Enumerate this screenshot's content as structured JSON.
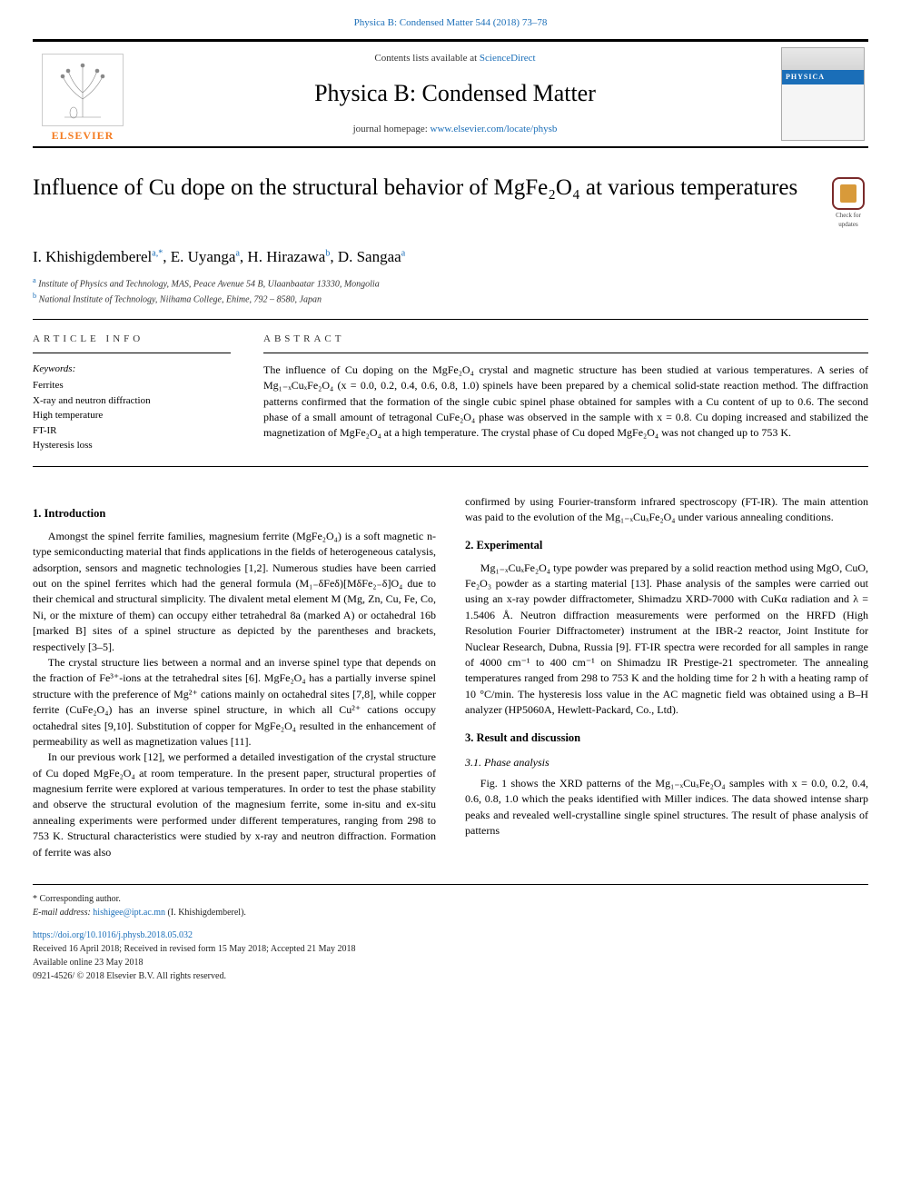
{
  "top_link": "Physica B: Condensed Matter 544 (2018) 73–78",
  "header": {
    "contents_prefix": "Contents lists available at ",
    "contents_link": "ScienceDirect",
    "journal_name": "Physica B: Condensed Matter",
    "homepage_prefix": "journal homepage: ",
    "homepage_link": "www.elsevier.com/locate/physb",
    "elsevier": "ELSEVIER",
    "cover_band": "PHYSICA"
  },
  "title": "Influence of Cu dope on the structural behavior of MgFe₂O₄ at various temperatures",
  "check_for_updates": "Check for updates",
  "authors_html": "I. Khishigdemberel<sup>a,*</sup>, E. Uyanga<sup>a</sup>, H. Hirazawa<sup>b</sup>, D. Sangaa<sup>a</sup>",
  "affiliations": {
    "a": "Institute of Physics and Technology, MAS, Peace Avenue 54 B, Ulaanbaatar 13330, Mongolia",
    "b": "National Institute of Technology, Niihama College, Ehime, 792 – 8580, Japan"
  },
  "info": {
    "heading": "ARTICLE INFO",
    "keywords_label": "Keywords:",
    "keywords": [
      "Ferrites",
      "X-ray and neutron diffraction",
      "High temperature",
      "FT-IR",
      "Hysteresis loss"
    ]
  },
  "abstract": {
    "heading": "ABSTRACT",
    "text": "The influence of Cu doping on the MgFe₂O₄ crystal and magnetic structure has been studied at various temperatures. A series of Mg₁₋ₓCuₓFe₂O₄ (x = 0.0, 0.2, 0.4, 0.6, 0.8, 1.0) spinels have been prepared by a chemical solid-state reaction method. The diffraction patterns confirmed that the formation of the single cubic spinel phase obtained for samples with a Cu content of up to 0.6. The second phase of a small amount of tetragonal CuFe₂O₄ phase was observed in the sample with x = 0.8. Cu doping increased and stabilized the magnetization of MgFe₂O₄ at a high temperature. The crystal phase of Cu doped MgFe₂O₄ was not changed up to 753 K."
  },
  "sections": {
    "intro": {
      "heading": "1. Introduction",
      "p1": "Amongst the spinel ferrite families, magnesium ferrite (MgFe₂O₄) is a soft magnetic n-type semiconducting material that finds applications in the fields of heterogeneous catalysis, adsorption, sensors and magnetic technologies [1,2]. Numerous studies have been carried out on the spinel ferrites which had the general formula (M₁₋δFeδ)[MδFe₂₋δ]O₄ due to their chemical and structural simplicity. The divalent metal element M (Mg, Zn, Cu, Fe, Co, Ni, or the mixture of them) can occupy either tetrahedral 8a (marked A) or octahedral 16b [marked B] sites of a spinel structure as depicted by the parentheses and brackets, respectively [3–5].",
      "p2": "The crystal structure lies between a normal and an inverse spinel type that depends on the fraction of Fe³⁺-ions at the tetrahedral sites [6]. MgFe₂O₄ has a partially inverse spinel structure with the preference of Mg²⁺ cations mainly on octahedral sites [7,8], while copper ferrite (CuFe₂O₄) has an inverse spinel structure, in which all Cu²⁺ cations occupy octahedral sites [9,10]. Substitution of copper for MgFe₂O₄ resulted in the enhancement of permeability as well as magnetization values [11].",
      "p3": "In our previous work [12], we performed a detailed investigation of the crystal structure of Cu doped MgFe₂O₄ at room temperature. In the present paper, structural properties of magnesium ferrite were explored at various temperatures. In order to test the phase stability and observe the structural evolution of the magnesium ferrite, some in-situ and ex-situ annealing experiments were performed under different temperatures, ranging from 298 to 753 K. Structural characteristics were studied by x-ray and neutron diffraction. Formation of ferrite was also",
      "p3b": "confirmed by using Fourier-transform infrared spectroscopy (FT-IR). The main attention was paid to the evolution of the Mg₁₋ₓCuₓFe₂O₄ under various annealing conditions."
    },
    "exp": {
      "heading": "2. Experimental",
      "p1": "Mg₁₋ₓCuₓFe₂O₄ type powder was prepared by a solid reaction method using MgO, CuO, Fe₂O₃ powder as a starting material [13]. Phase analysis of the samples were carried out using an x-ray powder diffractometer, Shimadzu XRD-7000 with CuKα radiation and λ = 1.5406 Å. Neutron diffraction measurements were performed on the HRFD (High Resolution Fourier Diffractometer) instrument at the IBR-2 reactor, Joint Institute for Nuclear Research, Dubna, Russia [9]. FT-IR spectra were recorded for all samples in range of 4000 cm⁻¹ to 400 cm⁻¹ on Shimadzu IR Prestige-21 spectrometer. The annealing temperatures ranged from 298 to 753 K and the holding time for 2 h with a heating ramp of 10 °C/min. The hysteresis loss value in the AC magnetic field was obtained using a B–H analyzer (HP5060A, Hewlett-Packard, Co., Ltd)."
    },
    "results": {
      "heading": "3. Result and discussion",
      "sub1_heading": "3.1. Phase analysis",
      "sub1_p1": "Fig. 1 shows the XRD patterns of the Mg₁₋ₓCuₓFe₂O₄ samples with x = 0.0, 0.2, 0.4, 0.6, 0.8, 1.0 which the peaks identified with Miller indices. The data showed intense sharp peaks and revealed well-crystalline single spinel structures. The result of phase analysis of patterns"
    }
  },
  "footer": {
    "corr": "* Corresponding author.",
    "email_label": "E-mail address: ",
    "email": "hishigee@ipt.ac.mn",
    "email_tail": " (I. Khishigdemberel).",
    "doi": "https://doi.org/10.1016/j.physb.2018.05.032",
    "received": "Received 16 April 2018; Received in revised form 15 May 2018; Accepted 21 May 2018",
    "online": "Available online 23 May 2018",
    "copyright": "0921-4526/ © 2018 Elsevier B.V. All rights reserved."
  },
  "colors": {
    "link": "#1a6eb8",
    "elsevier_orange": "#f47b20",
    "rule": "#000000"
  }
}
